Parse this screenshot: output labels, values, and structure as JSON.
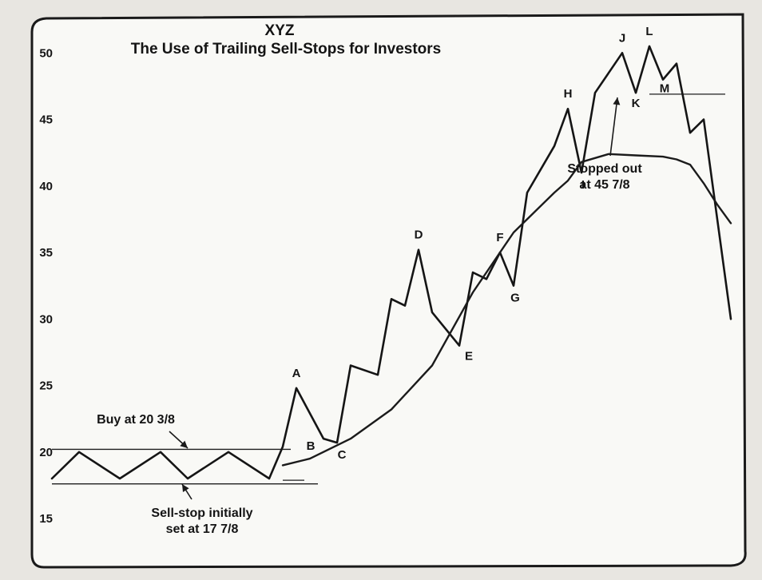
{
  "chart_data": {
    "type": "line",
    "title": "XYZ",
    "subtitle": "The Use of Trailing Sell-Stops for Investors",
    "xlabel": "",
    "ylabel": "",
    "ylim": [
      15,
      51
    ],
    "yticks": [
      15,
      20,
      25,
      30,
      35,
      40,
      45,
      50
    ],
    "grid": false,
    "series": [
      {
        "name": "",
        "role": "price",
        "x": [
          0,
          2,
          5,
          8,
          10,
          13,
          16,
          17,
          18,
          20,
          21,
          22,
          24,
          25,
          26,
          27,
          28,
          30,
          31,
          32,
          33,
          34,
          35,
          37,
          38,
          39,
          40,
          42,
          43,
          44,
          45,
          46,
          47,
          48,
          49,
          50
        ],
        "y": [
          18.0,
          20.0,
          18.0,
          20.0,
          18.0,
          20.0,
          18.0,
          20.4,
          24.8,
          21.0,
          20.7,
          26.5,
          25.8,
          31.5,
          31.0,
          35.2,
          30.5,
          28.0,
          33.5,
          33.0,
          35.0,
          32.5,
          39.5,
          43.0,
          45.8,
          41.0,
          47.0,
          50.0,
          47.0,
          50.5,
          48.0,
          49.2,
          44.0,
          45.0,
          37.5,
          30.0
        ]
      },
      {
        "name": "",
        "role": "trailing-stop-curve",
        "x": [
          17,
          19,
          22,
          25,
          28,
          31,
          34,
          37,
          38,
          39,
          41,
          43,
          45,
          46,
          47,
          48,
          49,
          50
        ],
        "y": [
          19.0,
          19.5,
          21.0,
          23.2,
          26.5,
          32.0,
          36.5,
          39.5,
          40.4,
          41.8,
          42.4,
          42.3,
          42.2,
          42.0,
          41.6,
          40.2,
          38.6,
          37.2
        ]
      }
    ],
    "reference_lines": [
      {
        "role": "buy-range-upper",
        "y": 20.2,
        "x": [
          0,
          17
        ]
      },
      {
        "role": "initial-sell-stop",
        "y": 17.875,
        "x": [
          17,
          18
        ]
      },
      {
        "role": "buy-range-lower",
        "y": 17.6,
        "x": [
          0,
          19
        ]
      },
      {
        "role": "stop-level",
        "y": 46.9,
        "x": [
          44,
          49
        ]
      }
    ],
    "point_labels": [
      {
        "text": "A",
        "x": 18,
        "y": 24.8
      },
      {
        "text": "B",
        "x": 20,
        "y": 21.0
      },
      {
        "text": "C",
        "x": 21,
        "y": 20.7
      },
      {
        "text": "D",
        "x": 27,
        "y": 35.2
      },
      {
        "text": "E",
        "x": 30,
        "y": 28.0
      },
      {
        "text": "F",
        "x": 33,
        "y": 35.0
      },
      {
        "text": "G",
        "x": 34,
        "y": 32.5
      },
      {
        "text": "H",
        "x": 38,
        "y": 45.8
      },
      {
        "text": "I",
        "x": 39,
        "y": 41.0
      },
      {
        "text": "J",
        "x": 42,
        "y": 50.0
      },
      {
        "text": "K",
        "x": 43,
        "y": 47.0
      },
      {
        "text": "L",
        "x": 44,
        "y": 50.5
      },
      {
        "text": "M",
        "x": 45,
        "y": 48.0
      }
    ],
    "annotations": [
      {
        "lines": [
          "Buy at 20 3/8"
        ],
        "x": 17,
        "y": 20.375
      },
      {
        "lines": [
          "Sell-stop initially",
          "set at 17 7/8"
        ],
        "x": 17,
        "y": 17.875
      },
      {
        "lines": [
          "Stopped out",
          "at 45 7/8"
        ],
        "x": 46.5,
        "y": 45.875
      }
    ]
  }
}
